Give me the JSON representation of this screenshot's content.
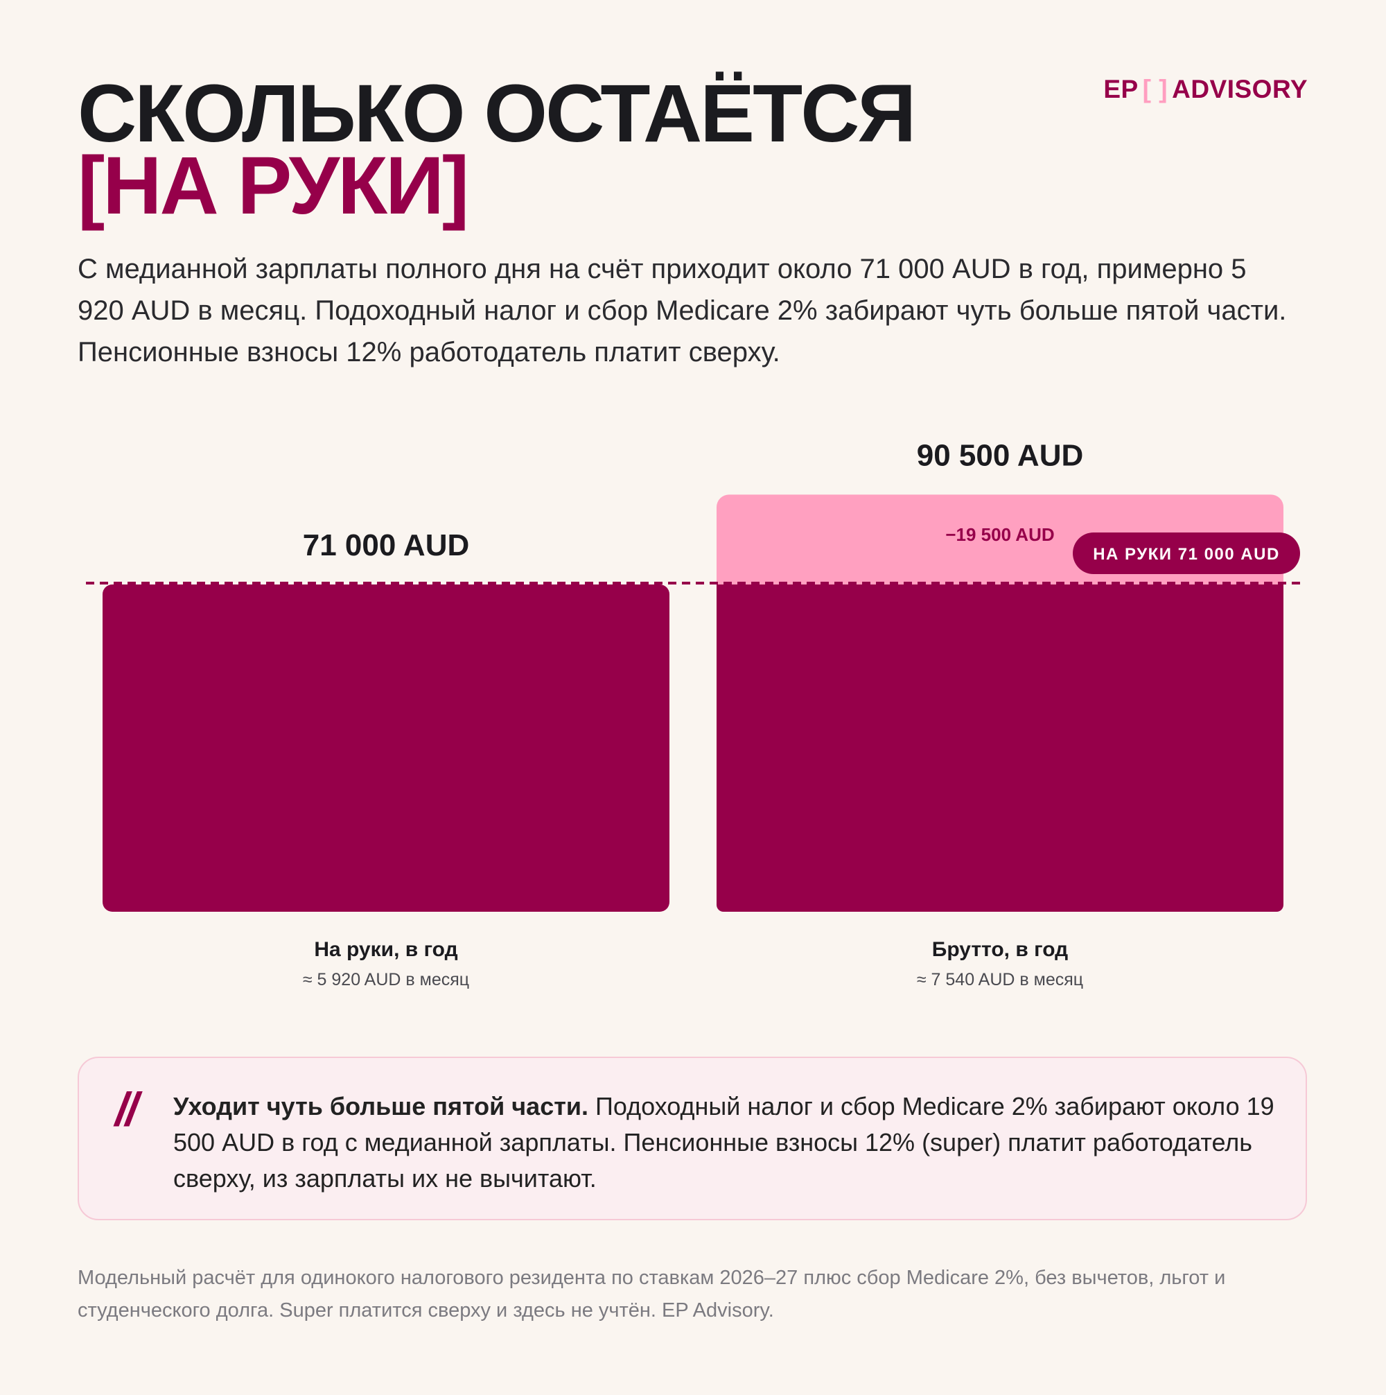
{
  "brand": {
    "left": "EP",
    "bracket": "[ ]",
    "right": "ADVISORY"
  },
  "title": {
    "line1": "СКОЛЬКО ОСТАЁТСЯ",
    "open_bracket": "[",
    "line2": "НА РУКИ",
    "close_bracket": "]"
  },
  "lead": "С медианной зарплаты полного дня на счёт приходит около 71 000 AUD в год, примерно 5 920 AUD в месяц. Подоходный налог и сбор Medicare 2% забирают чуть больше пятой части. Пенсионные взносы 12% работодатель платит сверху.",
  "chart_data": {
    "type": "bar",
    "categories": [
      "На руки, в год",
      "Брутто, в год"
    ],
    "sublabels": [
      "≈ 5 920 AUD в месяц",
      "≈ 7 540 AUD в месяц"
    ],
    "value_labels": [
      "71 000 AUD",
      "90 500 AUD"
    ],
    "net": 71000,
    "gross": 90500,
    "deduction": 19500,
    "deduction_label": "−19 500 AUD",
    "reference_line": {
      "value": 71000,
      "label": "НА РУКИ 71 000 AUD"
    },
    "colors": {
      "net": "#96004a",
      "deduction": "#ffa0c0",
      "text": "#1b1b1f"
    }
  },
  "note": {
    "lead": "Уходит чуть больше пятой части.",
    "text": " Подоходный налог и сбор Medicare 2% забирают около 19 500 AUD в год с медианной зарплаты. Пенсионные взносы 12% (super) платит работодатель сверху, из зарплаты их не вычитают."
  },
  "footnote": "Модельный расчёт для одинокого налогового резидента по ставкам 2026–27 плюс сбор Medicare 2%, без вычетов, льгот и студенческого долга. Super платится сверху и здесь не учтён. EP Advisory."
}
